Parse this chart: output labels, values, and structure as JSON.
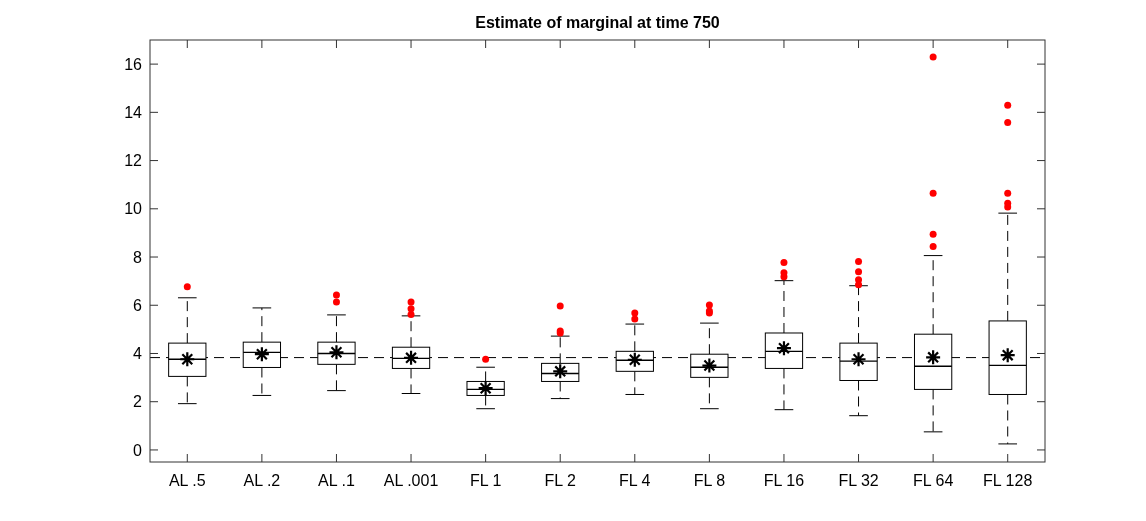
{
  "chart_data": {
    "type": "box",
    "title": "Estimate of marginal at time 750",
    "categories": [
      "AL .5",
      "AL .2",
      "AL .1",
      "AL .001",
      "FL 1",
      "FL 2",
      "FL 4",
      "FL 8",
      "FL 16",
      "FL 32",
      "FL 64",
      "FL 128"
    ],
    "boxes": [
      {
        "low": 1.92,
        "q1": 3.05,
        "median": 3.76,
        "q3": 4.43,
        "high": 6.31,
        "mean": 3.76,
        "outliers": [
          6.77
        ]
      },
      {
        "low": 2.26,
        "q1": 3.42,
        "median": 4.05,
        "q3": 4.47,
        "high": 5.89,
        "mean": 3.97
      },
      {
        "low": 2.46,
        "q1": 3.55,
        "median": 4.0,
        "q3": 4.47,
        "high": 5.6,
        "mean": 4.05,
        "outliers": [
          6.14,
          6.43
        ]
      },
      {
        "low": 2.34,
        "q1": 3.38,
        "median": 3.8,
        "q3": 4.26,
        "high": 5.56,
        "mean": 3.82,
        "outliers": [
          5.62,
          5.85,
          6.14
        ]
      },
      {
        "low": 1.71,
        "q1": 2.26,
        "median": 2.51,
        "q3": 2.84,
        "high": 3.43,
        "mean": 2.56,
        "outliers": [
          3.76
        ]
      },
      {
        "low": 2.13,
        "q1": 2.84,
        "median": 3.17,
        "q3": 3.59,
        "high": 4.72,
        "mean": 3.26,
        "outliers": [
          4.85,
          4.93,
          5.97
        ]
      },
      {
        "low": 2.3,
        "q1": 3.26,
        "median": 3.72,
        "q3": 4.09,
        "high": 5.22,
        "mean": 3.74,
        "outliers": [
          5.43,
          5.68
        ]
      },
      {
        "low": 1.71,
        "q1": 3.01,
        "median": 3.43,
        "q3": 3.97,
        "high": 5.26,
        "mean": 3.5,
        "outliers": [
          5.68,
          5.76,
          6.01
        ]
      },
      {
        "low": 1.67,
        "q1": 3.38,
        "median": 4.09,
        "q3": 4.85,
        "high": 7.02,
        "mean": 4.22,
        "outliers": [
          7.18,
          7.35,
          7.77
        ]
      },
      {
        "low": 1.42,
        "q1": 2.88,
        "median": 3.68,
        "q3": 4.43,
        "high": 6.81,
        "mean": 3.76,
        "outliers": [
          6.85,
          7.06,
          7.39,
          7.81
        ]
      },
      {
        "low": 0.75,
        "q1": 2.51,
        "median": 3.47,
        "q3": 4.8,
        "high": 8.06,
        "mean": 3.84,
        "outliers": [
          8.44,
          8.94,
          10.65,
          16.29
        ]
      },
      {
        "low": 0.25,
        "q1": 2.3,
        "median": 3.51,
        "q3": 5.35,
        "high": 9.82,
        "mean": 3.93,
        "outliers": [
          10.07,
          10.23,
          10.65,
          13.58,
          14.29
        ]
      }
    ],
    "ylim": [
      -0.5,
      17
    ],
    "yticks": [
      0,
      2,
      4,
      6,
      8,
      10,
      12,
      14,
      16
    ],
    "ref_lines": [
      {
        "axis": "y",
        "value": 3.83,
        "color": "#000000",
        "line_style": "dashed"
      }
    ],
    "marker": "star",
    "grid": false
  }
}
